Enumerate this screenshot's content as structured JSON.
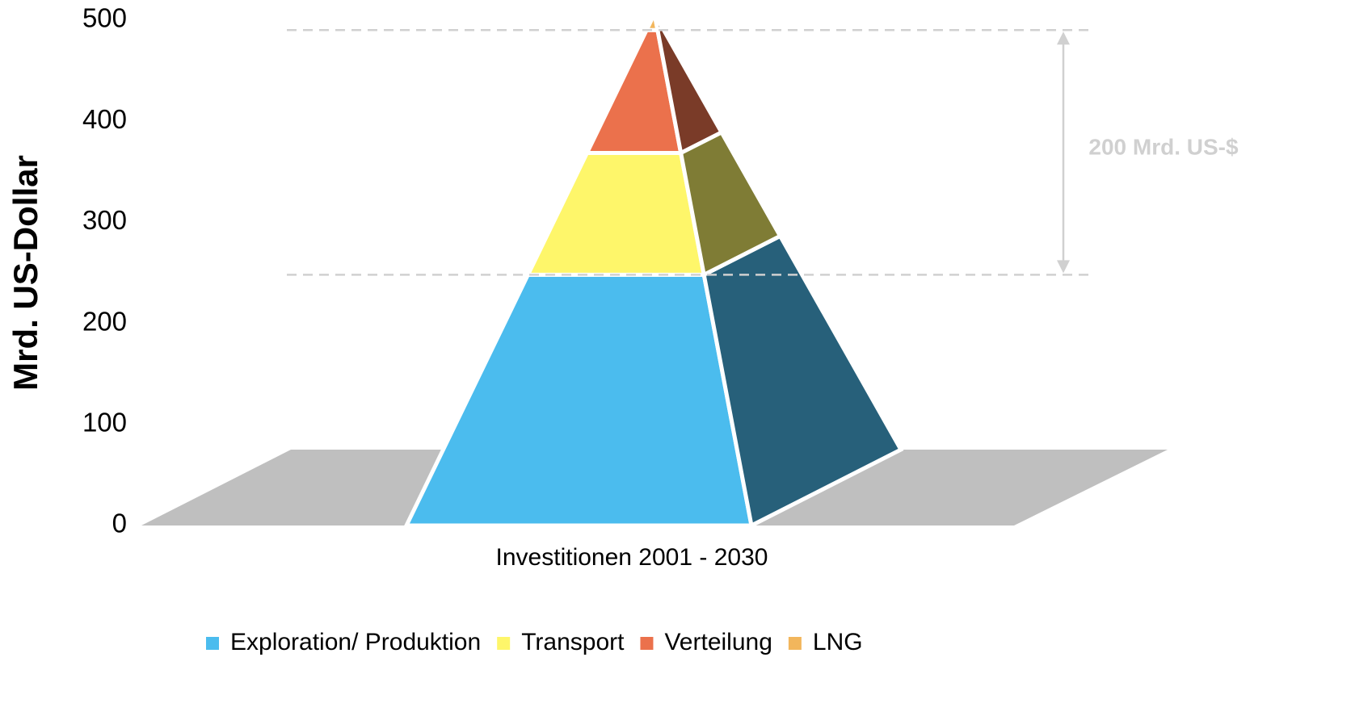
{
  "chart_data": {
    "type": "pyramid",
    "y_label": "Mrd. US-Dollar",
    "categories": [
      "Investitionen 2001 - 2030"
    ],
    "series": [
      {
        "name": "Exploration/ Produktion",
        "color": "#4bbcee",
        "side_color": "#27607a",
        "values": [
          245
        ]
      },
      {
        "name": "Transport",
        "color": "#fef66a",
        "side_color": "#7f7c35",
        "values": [
          119
        ]
      },
      {
        "name": "Verteilung",
        "color": "#eb714c",
        "side_color": "#7a3b28",
        "values": [
          120
        ]
      },
      {
        "name": "LNG",
        "color": "#f2b65c",
        "side_color": "#6b4a2a",
        "values": [
          16
        ]
      }
    ],
    "ylim": [
      0,
      500
    ],
    "yticks": [
      0,
      100,
      200,
      300,
      400,
      500
    ],
    "annotation": "200 Mrd. US-$"
  }
}
